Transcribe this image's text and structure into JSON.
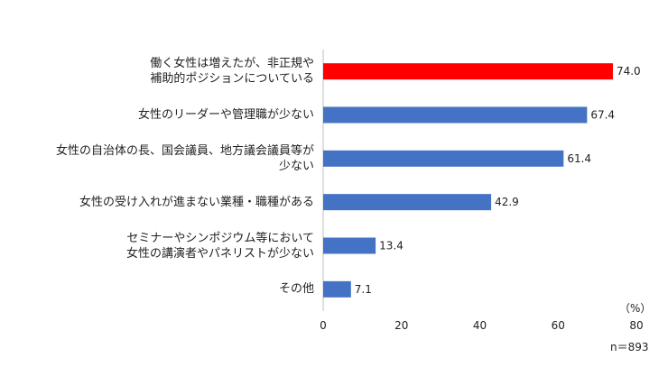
{
  "chart_data": {
    "type": "bar",
    "orientation": "horizontal",
    "categories": [
      "働く女性は増えたが、非正規や\n補助的ポジションについている",
      "女性のリーダーや管理職が少ない",
      "女性の自治体の長、国会議員、地方議会議員等が\n少ない",
      "女性の受け入れが進まない業種・職種がある",
      "セミナーやシンポジウム等において\n女性の講演者やパネリストが少ない",
      "その他"
    ],
    "values": [
      74.0,
      67.4,
      61.4,
      42.9,
      13.4,
      7.1
    ],
    "value_labels": [
      "74.0",
      "67.4",
      "61.4",
      "42.9",
      "13.4",
      "7.1"
    ],
    "bar_colors": [
      "#ff0000",
      "#4472c4",
      "#4472c4",
      "#4472c4",
      "#4472c4",
      "#4472c4"
    ],
    "xlim": [
      0,
      80
    ],
    "xticks": [
      "0",
      "20",
      "40",
      "60",
      "80"
    ],
    "unit": "（%）",
    "note": "n＝893",
    "grid": false,
    "legend": "none"
  }
}
